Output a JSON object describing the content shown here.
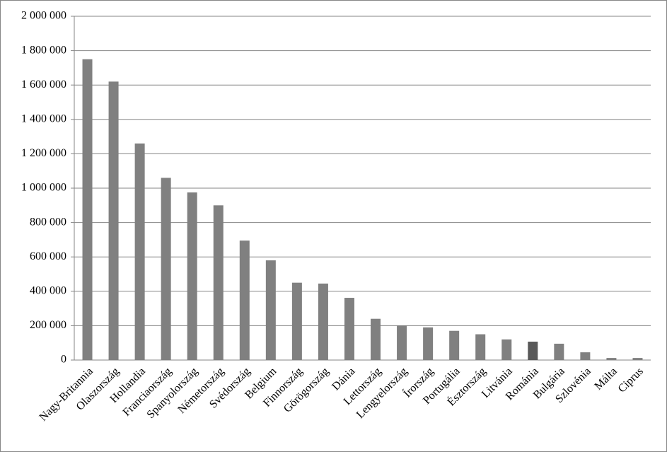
{
  "chart_data": {
    "type": "bar",
    "categories": [
      "Nagy-Britannia",
      "Olaszország",
      "Hollandia",
      "Franciaország",
      "Spanyolország",
      "Németország",
      "Svédország",
      "Belgium",
      "Finnország",
      "Görögország",
      "Dánia",
      "Lettország",
      "Lengyelország",
      "Írország",
      "Portugália",
      "Észtország",
      "Litvánia",
      "Románia",
      "Bulgária",
      "Szlovénia",
      "Málta",
      "Ciprus"
    ],
    "values": [
      1750000,
      1620000,
      1260000,
      1060000,
      975000,
      900000,
      695000,
      580000,
      450000,
      445000,
      362000,
      240000,
      200000,
      190000,
      170000,
      150000,
      120000,
      107000,
      95000,
      45000,
      12000,
      12000
    ],
    "colors": [
      "#808080",
      "#808080",
      "#808080",
      "#808080",
      "#808080",
      "#808080",
      "#808080",
      "#808080",
      "#808080",
      "#808080",
      "#808080",
      "#808080",
      "#808080",
      "#808080",
      "#808080",
      "#808080",
      "#808080",
      "#595959",
      "#808080",
      "#808080",
      "#808080",
      "#808080"
    ],
    "ylim": [
      0,
      2000000
    ],
    "yticks": [
      {
        "value": 0,
        "label": "0"
      },
      {
        "value": 200000,
        "label": "200 000"
      },
      {
        "value": 400000,
        "label": "400 000"
      },
      {
        "value": 600000,
        "label": "600 000"
      },
      {
        "value": 800000,
        "label": "800 000"
      },
      {
        "value": 1000000,
        "label": "1 000 000"
      },
      {
        "value": 1200000,
        "label": "1 200 000"
      },
      {
        "value": 1400000,
        "label": "1 400 000"
      },
      {
        "value": 1600000,
        "label": "1 600 000"
      },
      {
        "value": 1800000,
        "label": "1 800 000"
      },
      {
        "value": 2000000,
        "label": "2 000 000"
      }
    ],
    "grid": true
  }
}
